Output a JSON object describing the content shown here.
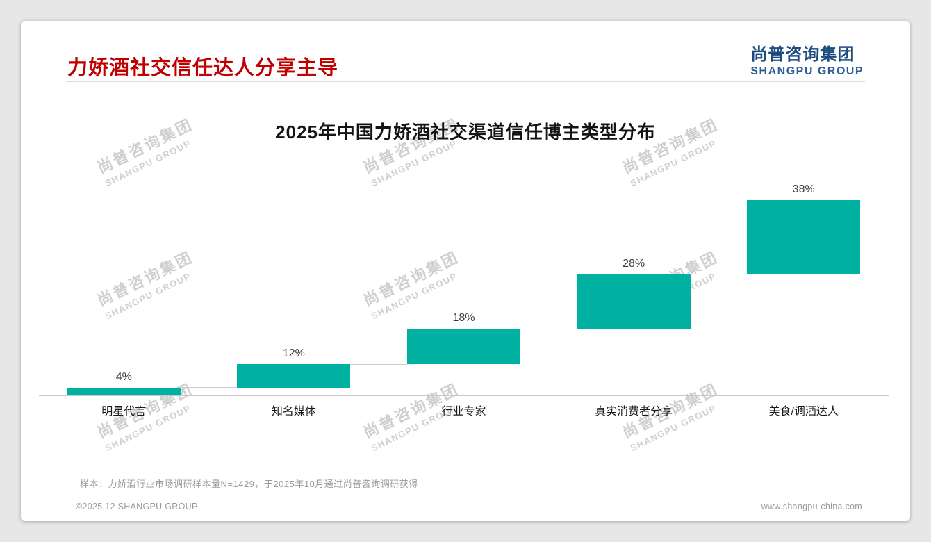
{
  "page": {
    "title": "力娇酒社交信任达人分享主导",
    "logo_cn": "尚普咨询集团",
    "logo_en": "SHANGPU GROUP",
    "footnote": "样本：力娇酒行业市场调研样本量N=1429，于2025年10月通过尚普咨询调研获得",
    "footer_left": "©2025.12 SHANGPU GROUP",
    "footer_right": "www.shangpu-china.com"
  },
  "watermark": {
    "cn": "尚普咨询集团",
    "en": "SHANGPU GROUP"
  },
  "chart_data": {
    "type": "bar",
    "subtype": "waterfall-step",
    "title": "2025年中国力娇酒社交渠道信任博主类型分布",
    "categories": [
      "明星代言",
      "知名媒体",
      "行业专家",
      "真实消费者分享",
      "美食/调酒达人"
    ],
    "values": [
      4,
      12,
      18,
      28,
      38
    ],
    "labels": [
      "4%",
      "12%",
      "18%",
      "28%",
      "38%"
    ],
    "bar_color": "#00b0a0",
    "ylim": [
      0,
      100
    ],
    "grid": false,
    "legend": false,
    "layout_note": "each bar floats, starting at the cumulative sum of previous bars; thin gray connector lines join successive bar steps"
  },
  "colors": {
    "title_red": "#c00000",
    "logo_blue": "#1c4b80",
    "bar_teal": "#00b0a0",
    "axis_gray": "#c9c9c9"
  }
}
